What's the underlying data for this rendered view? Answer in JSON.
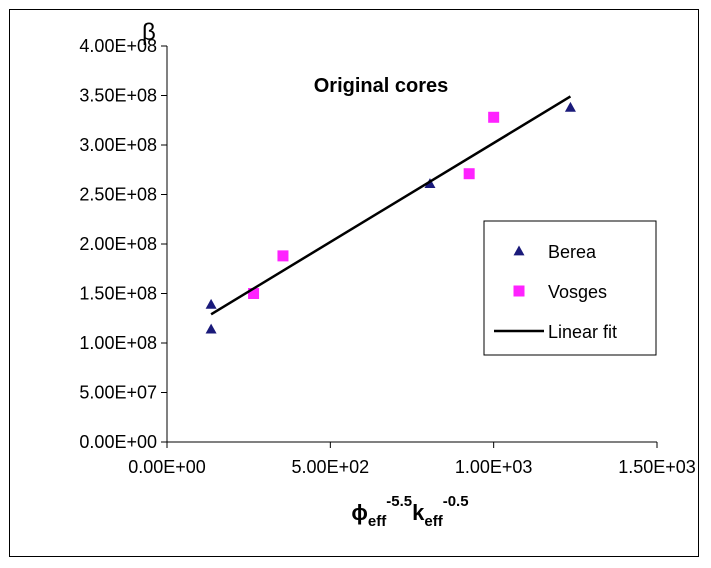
{
  "chart_data": {
    "type": "scatter",
    "title": "Original cores",
    "ylabel": "β",
    "xlabel": {
      "parts": [
        {
          "text": "ϕ",
          "style": "base"
        },
        {
          "text": "eff",
          "style": "sub"
        },
        {
          "text": "-5.5",
          "style": "sup"
        },
        {
          "text": "k",
          "style": "base"
        },
        {
          "text": "eff",
          "style": "sub"
        },
        {
          "text": "-0.5",
          "style": "sup"
        }
      ]
    },
    "xlim": [
      0,
      1500
    ],
    "ylim": [
      0,
      400000000
    ],
    "x_ticks": [
      {
        "value": 0,
        "label": "0.00E+00"
      },
      {
        "value": 500,
        "label": "5.00E+02"
      },
      {
        "value": 1000,
        "label": "1.00E+03"
      },
      {
        "value": 1500,
        "label": "1.50E+03"
      }
    ],
    "y_ticks": [
      {
        "value": 0,
        "label": "0.00E+00"
      },
      {
        "value": 50000000,
        "label": "5.00E+07"
      },
      {
        "value": 100000000,
        "label": "1.00E+08"
      },
      {
        "value": 150000000,
        "label": "1.50E+08"
      },
      {
        "value": 200000000,
        "label": "2.00E+08"
      },
      {
        "value": 250000000,
        "label": "2.50E+08"
      },
      {
        "value": 300000000,
        "label": "3.00E+08"
      },
      {
        "value": 350000000,
        "label": "3.50E+08"
      },
      {
        "value": 400000000,
        "label": "4.00E+08"
      }
    ],
    "grid": false,
    "legend_position": "right",
    "series": [
      {
        "name": "Berea",
        "marker": "triangle",
        "color": "#1a1a7a",
        "points": [
          {
            "x": 135,
            "y": 139000000
          },
          {
            "x": 135,
            "y": 114000000
          },
          {
            "x": 805,
            "y": 261000000
          },
          {
            "x": 1235,
            "y": 338000000
          }
        ]
      },
      {
        "name": "Vosges",
        "marker": "square",
        "color": "#ff22ff",
        "points": [
          {
            "x": 265,
            "y": 150000000
          },
          {
            "x": 355,
            "y": 188000000
          },
          {
            "x": 925,
            "y": 271000000
          },
          {
            "x": 1000,
            "y": 328000000
          }
        ]
      },
      {
        "name": "Linear fit",
        "marker": "line",
        "color": "#000000",
        "points": [
          {
            "x": 135,
            "y": 129000000
          },
          {
            "x": 1235,
            "y": 349000000
          }
        ]
      }
    ]
  }
}
